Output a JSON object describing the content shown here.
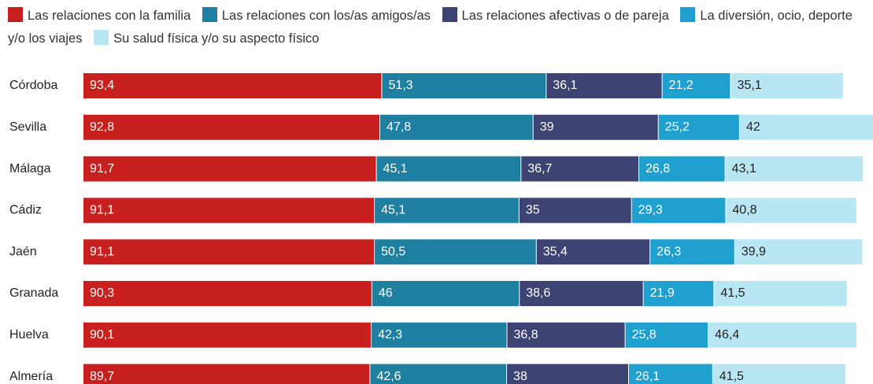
{
  "chart_data": {
    "type": "stacked_bar_horizontal",
    "categories": [
      "Córdoba",
      "Sevilla",
      "Málaga",
      "Cádiz",
      "Jaén",
      "Granada",
      "Huelva",
      "Almería"
    ],
    "series": [
      {
        "name": "Las relaciones con la familia",
        "color": "#c8201e",
        "values": [
          93.4,
          92.8,
          91.7,
          91.1,
          91.1,
          90.3,
          90.1,
          89.7
        ],
        "value_labels": [
          "93,4",
          "92,8",
          "91,7",
          "91,1",
          "91,1",
          "90,3",
          "90,1",
          "89,7"
        ]
      },
      {
        "name": "Las relaciones con los/as amigos/as",
        "color": "#1f7fa0",
        "values": [
          51.3,
          47.8,
          45.1,
          45.1,
          50.5,
          46,
          42.3,
          42.6
        ],
        "value_labels": [
          "51,3",
          "47,8",
          "45,1",
          "45,1",
          "50,5",
          "46",
          "42,3",
          "42,6"
        ]
      },
      {
        "name": "Las relaciones afectivas o de pareja",
        "color": "#3d4372",
        "values": [
          36.1,
          39,
          36.7,
          35,
          35.4,
          38.6,
          36.8,
          38
        ],
        "value_labels": [
          "36,1",
          "39",
          "36,7",
          "35",
          "35,4",
          "38,6",
          "36,8",
          "38"
        ]
      },
      {
        "name": "La diversión, ocio, deporte y/o los viajes",
        "color": "#1fa0cf",
        "values": [
          21.2,
          25.2,
          26.8,
          29.3,
          26.3,
          21.9,
          25.8,
          26.1
        ],
        "value_labels": [
          "21,2",
          "25,2",
          "26,8",
          "29,3",
          "26,3",
          "21,9",
          "25,8",
          "26,1"
        ]
      },
      {
        "name": "Su salud física y/o su aspecto físico",
        "color": "#b8e6f3",
        "values": [
          35.1,
          42,
          43.1,
          40.8,
          39.9,
          41.5,
          46.4,
          41.5
        ],
        "value_labels": [
          "35,1",
          "42",
          "43,1",
          "40,8",
          "39,9",
          "41,5",
          "46,4",
          "41,5"
        ]
      }
    ]
  }
}
